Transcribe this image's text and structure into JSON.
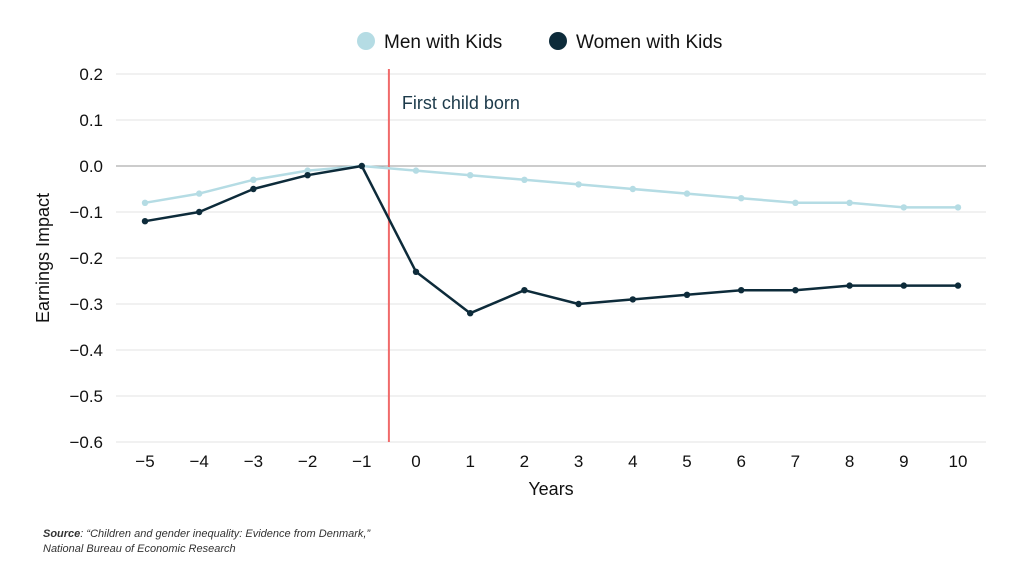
{
  "chart_data": {
    "type": "line",
    "x": [
      -5,
      -4,
      -3,
      -2,
      -1,
      0,
      1,
      2,
      3,
      4,
      5,
      6,
      7,
      8,
      9,
      10
    ],
    "x_tick_labels": [
      "−5",
      "−4",
      "−3",
      "−2",
      "−1",
      "0",
      "1",
      "2",
      "3",
      "4",
      "5",
      "6",
      "7",
      "8",
      "9",
      "10"
    ],
    "y_tick_values": [
      0.2,
      0.1,
      0.0,
      -0.1,
      -0.2,
      -0.3,
      -0.4,
      -0.5,
      -0.6
    ],
    "y_tick_labels": [
      "0.2",
      "0.1",
      "0.0",
      "−0.1",
      "−0.2",
      "−0.3",
      "−0.4",
      "−0.5",
      "−0.6"
    ],
    "ylim": [
      -0.6,
      0.2
    ],
    "xlabel": "Years",
    "ylabel": "Earnings Impact",
    "series": [
      {
        "name": "Men with Kids",
        "color": "#b5dce4",
        "values": [
          -0.08,
          -0.06,
          -0.03,
          -0.01,
          0.0,
          -0.01,
          -0.02,
          -0.03,
          -0.04,
          -0.05,
          -0.06,
          -0.07,
          -0.08,
          -0.08,
          -0.09,
          -0.09
        ]
      },
      {
        "name": "Women with Kids",
        "color": "#0d2b3a",
        "values": [
          -0.12,
          -0.1,
          -0.05,
          -0.02,
          0.0,
          -0.23,
          -0.32,
          -0.27,
          -0.3,
          -0.29,
          -0.28,
          -0.27,
          -0.27,
          -0.26,
          -0.26,
          -0.26
        ]
      }
    ],
    "annotation": {
      "text": "First child born",
      "x": -0.5,
      "color": "#f06a6a"
    },
    "legend": "top-center",
    "grid": true
  },
  "source": {
    "label": "Source",
    "text": ": “Children and gender inequality: Evidence from Denmark,”",
    "line2": "National Bureau of Economic Research"
  }
}
